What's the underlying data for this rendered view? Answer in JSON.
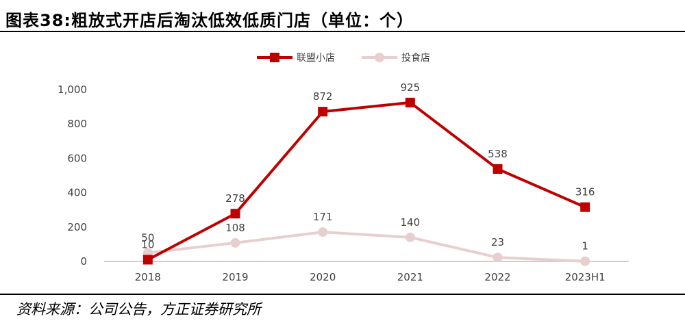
{
  "figure": {
    "title": "图表38:粗放式开店后淘汰低效低质门店（单位：个）",
    "source": "资料来源：公司公告，方正证券研究所"
  },
  "chart_data": {
    "type": "line",
    "categories": [
      "2018",
      "2019",
      "2020",
      "2021",
      "2022",
      "2023H1"
    ],
    "series": [
      {
        "name": "联盟小店",
        "values": [
          10,
          278,
          872,
          925,
          538,
          316
        ],
        "color": "#C00000",
        "marker": "square"
      },
      {
        "name": "投食店",
        "values": [
          50,
          108,
          171,
          140,
          23,
          1
        ],
        "color": "#E8CFCF",
        "marker": "circle"
      }
    ],
    "yticks": [
      "0",
      "200",
      "400",
      "600",
      "800",
      "1,000"
    ],
    "ylim": [
      0,
      1000
    ],
    "grid": false,
    "legend_position": "top"
  }
}
